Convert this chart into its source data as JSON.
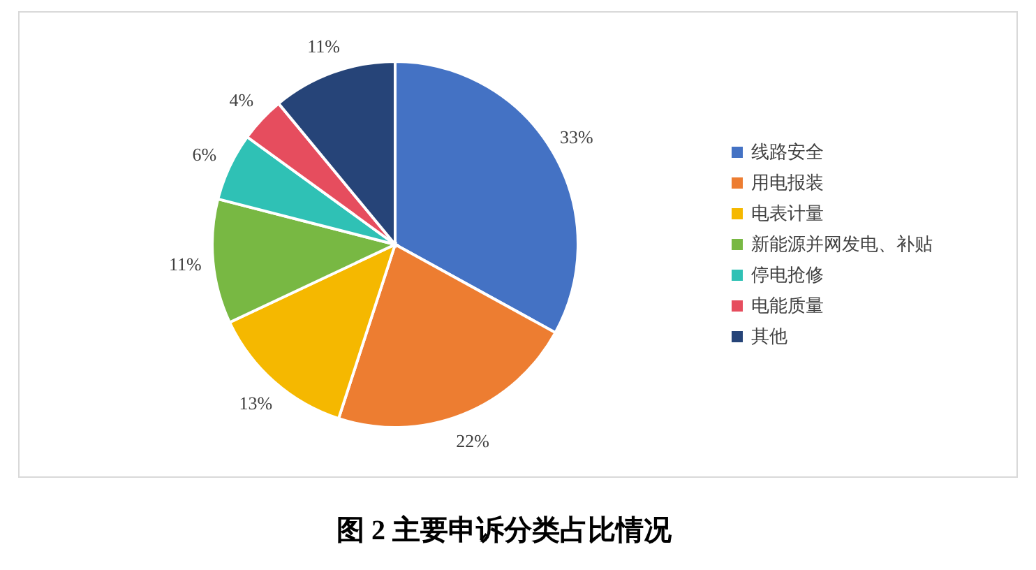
{
  "chart_data": {
    "type": "pie",
    "title": "图 2 主要申诉分类占比情况",
    "categories": [
      "线路安全",
      "用电报装",
      "电表计量",
      "新能源并网发电、补贴",
      "停电抢修",
      "电能质量",
      "其他"
    ],
    "values": [
      33,
      22,
      13,
      11,
      6,
      4,
      11
    ],
    "value_labels": [
      "33%",
      "22%",
      "13%",
      "11%",
      "6%",
      "4%",
      "11%"
    ],
    "colors": [
      "#4472c4",
      "#ed7d31",
      "#f5b800",
      "#78b843",
      "#2fc1b5",
      "#e64d5e",
      "#264478"
    ],
    "legend": "right"
  }
}
